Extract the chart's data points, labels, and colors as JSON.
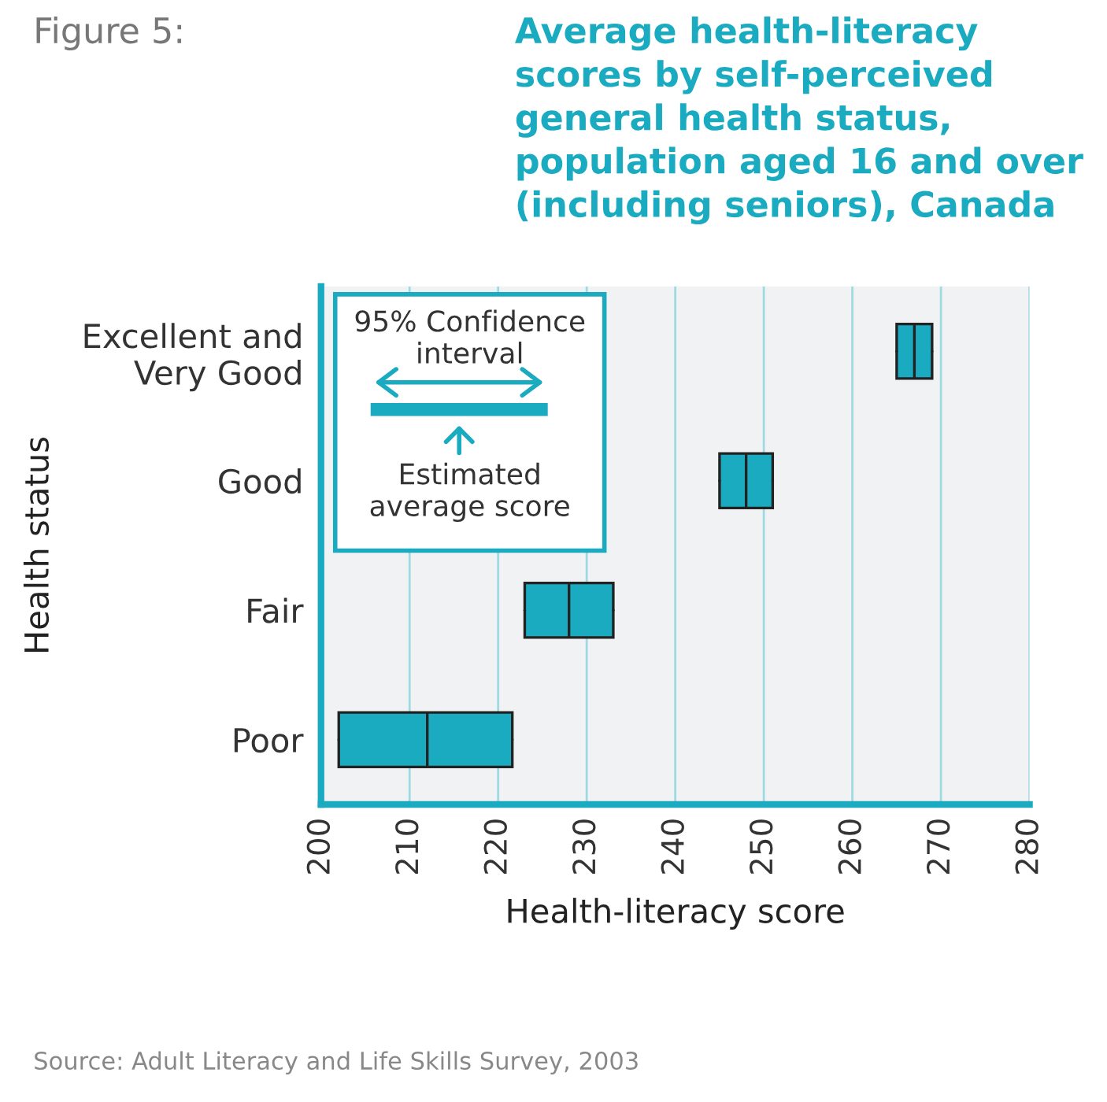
{
  "chart_data": {
    "type": "box",
    "orientation": "horizontal",
    "title": "Average health-literacy scores by self-perceived general health status, population aged 16 and over (including seniors), Canada",
    "xlabel": "Health-literacy score",
    "ylabel": "Health status",
    "categories": [
      "Excellent and\nVery Good",
      "Good",
      "Fair",
      "Poor"
    ],
    "boxes": [
      {
        "low": 265,
        "q1": 265,
        "median": 267,
        "q3": 269,
        "high": 269
      },
      {
        "low": 245,
        "q1": 245,
        "median": 248,
        "q3": 251,
        "high": 251
      },
      {
        "low": 223,
        "q1": 223,
        "median": 228,
        "q3": 233,
        "high": 233
      },
      {
        "low": 202,
        "q1": 202,
        "median": 212,
        "q3": 221.6,
        "high": 221.6
      }
    ],
    "color": "#1aabc0",
    "xlim": [
      200,
      280
    ],
    "xticks": [
      200,
      210,
      220,
      230,
      240,
      250,
      260,
      270,
      280
    ],
    "grid": "x",
    "annotations": [
      "Figure 5:",
      "95% Confidence\ninterval",
      "Estimated\naverage score",
      "Source: Adult Literacy and Life Skills Survey, 2003"
    ]
  }
}
